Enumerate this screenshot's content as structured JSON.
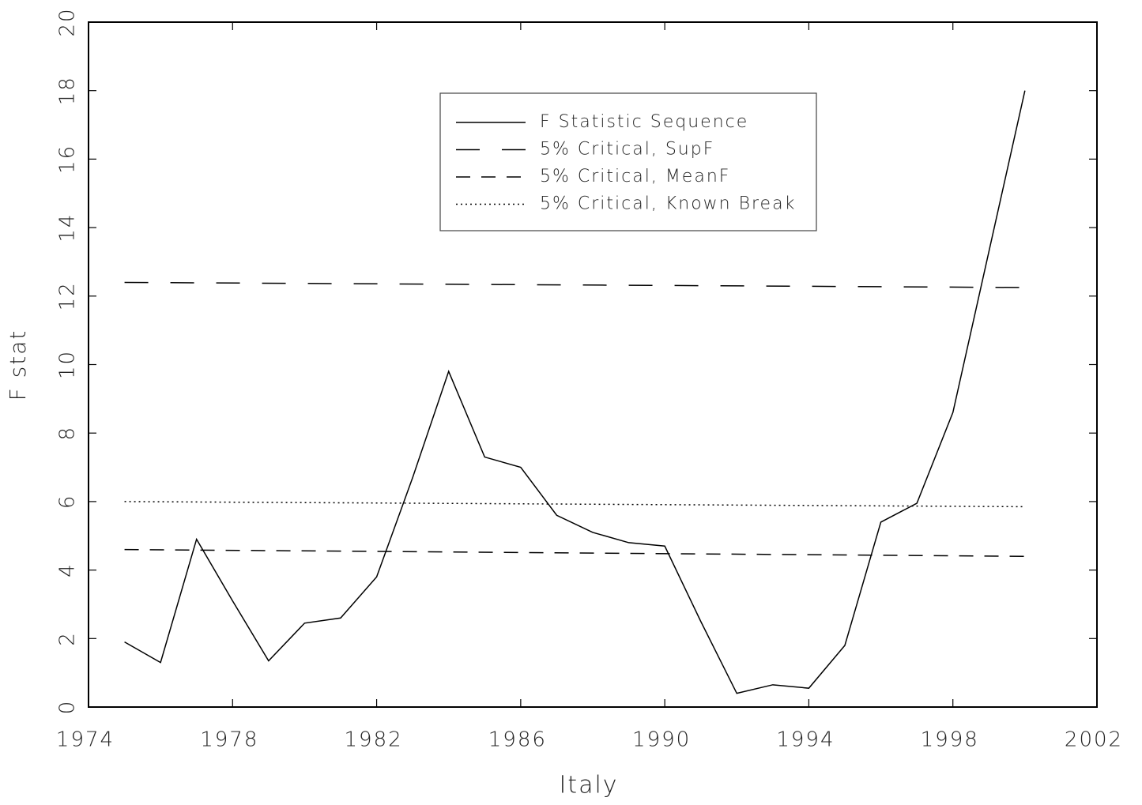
{
  "chart_data": {
    "type": "line",
    "xlabel": "Italy",
    "ylabel": "F stat",
    "xlim": [
      1974,
      2002
    ],
    "xticks": [
      1974,
      1978,
      1982,
      1986,
      1990,
      1994,
      1998,
      2002
    ],
    "ylim": [
      0,
      20
    ],
    "yticks": [
      0,
      2,
      4,
      6,
      8,
      10,
      12,
      14,
      16,
      18,
      20
    ],
    "legend": "upper center",
    "series": [
      {
        "name": "F Statistic Sequence",
        "color": "#000000",
        "style": "solid",
        "x": [
          1975,
          1976,
          1977,
          1978,
          1979,
          1980,
          1981,
          1982,
          1983,
          1984,
          1985,
          1986,
          1987,
          1988,
          1989,
          1990,
          1991,
          1992,
          1993,
          1994,
          1995,
          1996,
          1997,
          1998,
          1999,
          2000
        ],
        "values": [
          1.9,
          1.3,
          4.9,
          3.1,
          1.35,
          2.45,
          2.6,
          3.8,
          6.7,
          9.8,
          7.3,
          7.0,
          5.6,
          5.1,
          4.8,
          4.7,
          2.5,
          0.4,
          0.65,
          0.55,
          1.8,
          5.4,
          5.95,
          8.6,
          13.3,
          18.0
        ]
      },
      {
        "name": "5% Critical, SupF",
        "color": "#000000",
        "style": "long-dash",
        "x": [
          1975,
          2000
        ],
        "values": [
          12.4,
          12.25
        ]
      },
      {
        "name": "5% Critical, MeanF",
        "color": "#000000",
        "style": "dash",
        "x": [
          1975,
          2000
        ],
        "values": [
          4.6,
          4.4
        ]
      },
      {
        "name": "5% Critical, Known Break",
        "color": "#000000",
        "style": "dot",
        "x": [
          1975,
          2000
        ],
        "values": [
          6.0,
          5.85
        ]
      }
    ]
  }
}
